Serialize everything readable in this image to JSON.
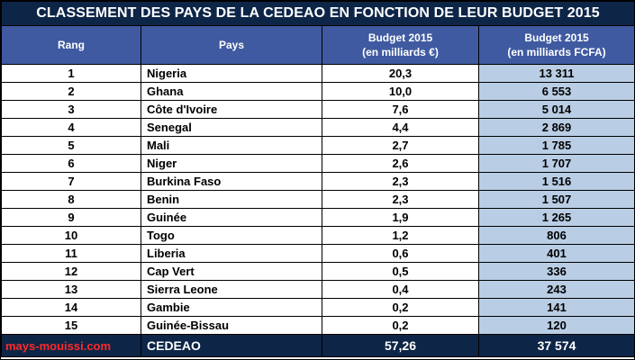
{
  "title": "CLASSEMENT DES PAYS DE LA CEDEAO EN FONCTION DE LEUR BUDGET 2015",
  "headers": {
    "rang": "Rang",
    "pays": "Pays",
    "eur_line1": "Budget 2015",
    "eur_line2": "(en milliards €)",
    "fcfa_line1": "Budget 2015",
    "fcfa_line2": "(en milliards FCFA)"
  },
  "rows": [
    {
      "rang": "1",
      "pays": "Nigeria",
      "eur": "20,3",
      "fcfa": "13 311"
    },
    {
      "rang": "2",
      "pays": "Ghana",
      "eur": "10,0",
      "fcfa": "6 553"
    },
    {
      "rang": "3",
      "pays": "Côte d'Ivoire",
      "eur": "7,6",
      "fcfa": "5 014"
    },
    {
      "rang": "4",
      "pays": "Senegal",
      "eur": "4,4",
      "fcfa": "2 869"
    },
    {
      "rang": "5",
      "pays": "Mali",
      "eur": "2,7",
      "fcfa": "1 785"
    },
    {
      "rang": "6",
      "pays": "Niger",
      "eur": "2,6",
      "fcfa": "1 707"
    },
    {
      "rang": "7",
      "pays": "Burkina Faso",
      "eur": "2,3",
      "fcfa": "1 516"
    },
    {
      "rang": "8",
      "pays": "Benin",
      "eur": "2,3",
      "fcfa": "1 507"
    },
    {
      "rang": "9",
      "pays": "Guinée",
      "eur": "1,9",
      "fcfa": "1 265"
    },
    {
      "rang": "10",
      "pays": "Togo",
      "eur": "1,2",
      "fcfa": "806"
    },
    {
      "rang": "11",
      "pays": "Liberia",
      "eur": "0,6",
      "fcfa": "401"
    },
    {
      "rang": "12",
      "pays": "Cap Vert",
      "eur": "0,5",
      "fcfa": "336"
    },
    {
      "rang": "13",
      "pays": "Sierra Leone",
      "eur": "0,4",
      "fcfa": "243"
    },
    {
      "rang": "14",
      "pays": "Gambie",
      "eur": "0,2",
      "fcfa": "141"
    },
    {
      "rang": "15",
      "pays": "Guinée-Bissau",
      "eur": "0,2",
      "fcfa": "120"
    }
  ],
  "total": {
    "source": "mays-mouissi.com",
    "label": "CEDEAO",
    "eur": "57,26",
    "fcfa": "37 574"
  },
  "colors": {
    "title_bg": "#0d2547",
    "header_bg": "#3f5aa0",
    "fcfa_column_bg": "#b9cde4",
    "source_text": "#ff2a2a"
  }
}
